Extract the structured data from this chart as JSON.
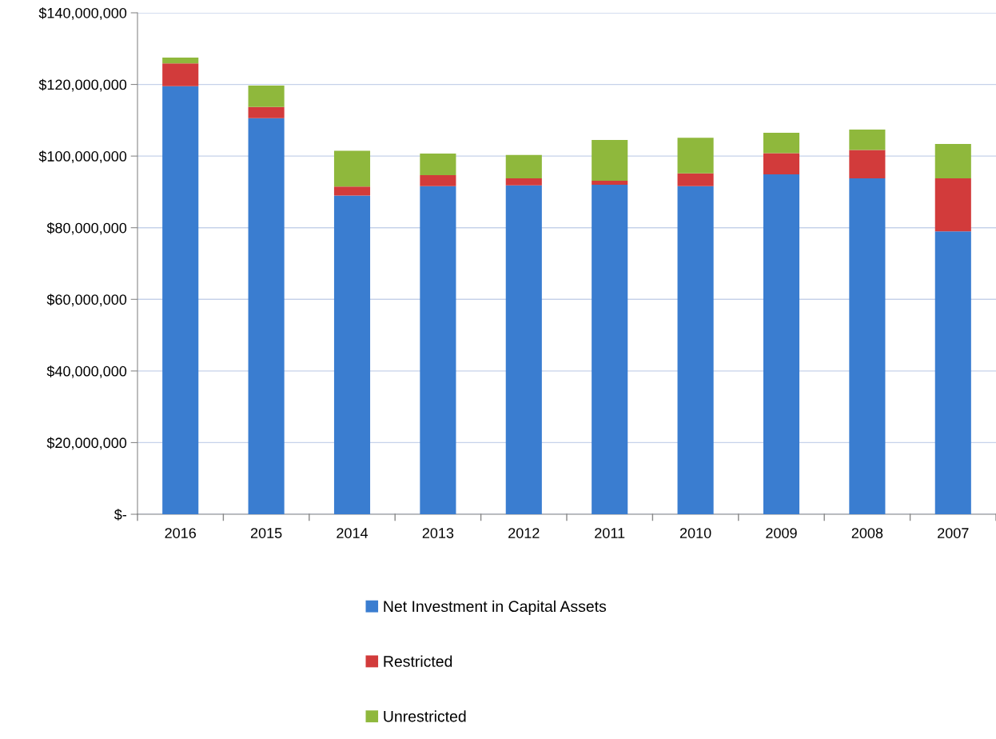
{
  "chart_data": {
    "type": "bar",
    "stacked": true,
    "categories": [
      "2016",
      "2015",
      "2014",
      "2013",
      "2012",
      "2011",
      "2010",
      "2009",
      "2008",
      "2007"
    ],
    "series": [
      {
        "name": "Net Investment in Capital Assets",
        "color": "#3a7dd0",
        "values": [
          119500000,
          110600000,
          89000000,
          91600000,
          91800000,
          92000000,
          91600000,
          94900000,
          93800000,
          79000000
        ]
      },
      {
        "name": "Restricted",
        "color": "#d23b3b",
        "values": [
          6400000,
          3100000,
          2500000,
          3100000,
          2000000,
          1100000,
          3600000,
          5900000,
          7900000,
          14800000
        ]
      },
      {
        "name": "Unrestricted",
        "color": "#8fb83c",
        "values": [
          1600000,
          6000000,
          10000000,
          6000000,
          6500000,
          11400000,
          9900000,
          5700000,
          5700000,
          9600000
        ]
      }
    ],
    "ylim": [
      0,
      140000000
    ],
    "yticks": [
      {
        "value": 0,
        "label": "$-"
      },
      {
        "value": 20000000,
        "label": "$20,000,000"
      },
      {
        "value": 40000000,
        "label": "$40,000,000"
      },
      {
        "value": 60000000,
        "label": "$60,000,000"
      },
      {
        "value": 80000000,
        "label": "$80,000,000"
      },
      {
        "value": 100000000,
        "label": "$100,000,000"
      },
      {
        "value": 120000000,
        "label": "$120,000,000"
      },
      {
        "value": 140000000,
        "label": "$140,000,000"
      }
    ],
    "grid": "y",
    "legend": "bottom"
  }
}
